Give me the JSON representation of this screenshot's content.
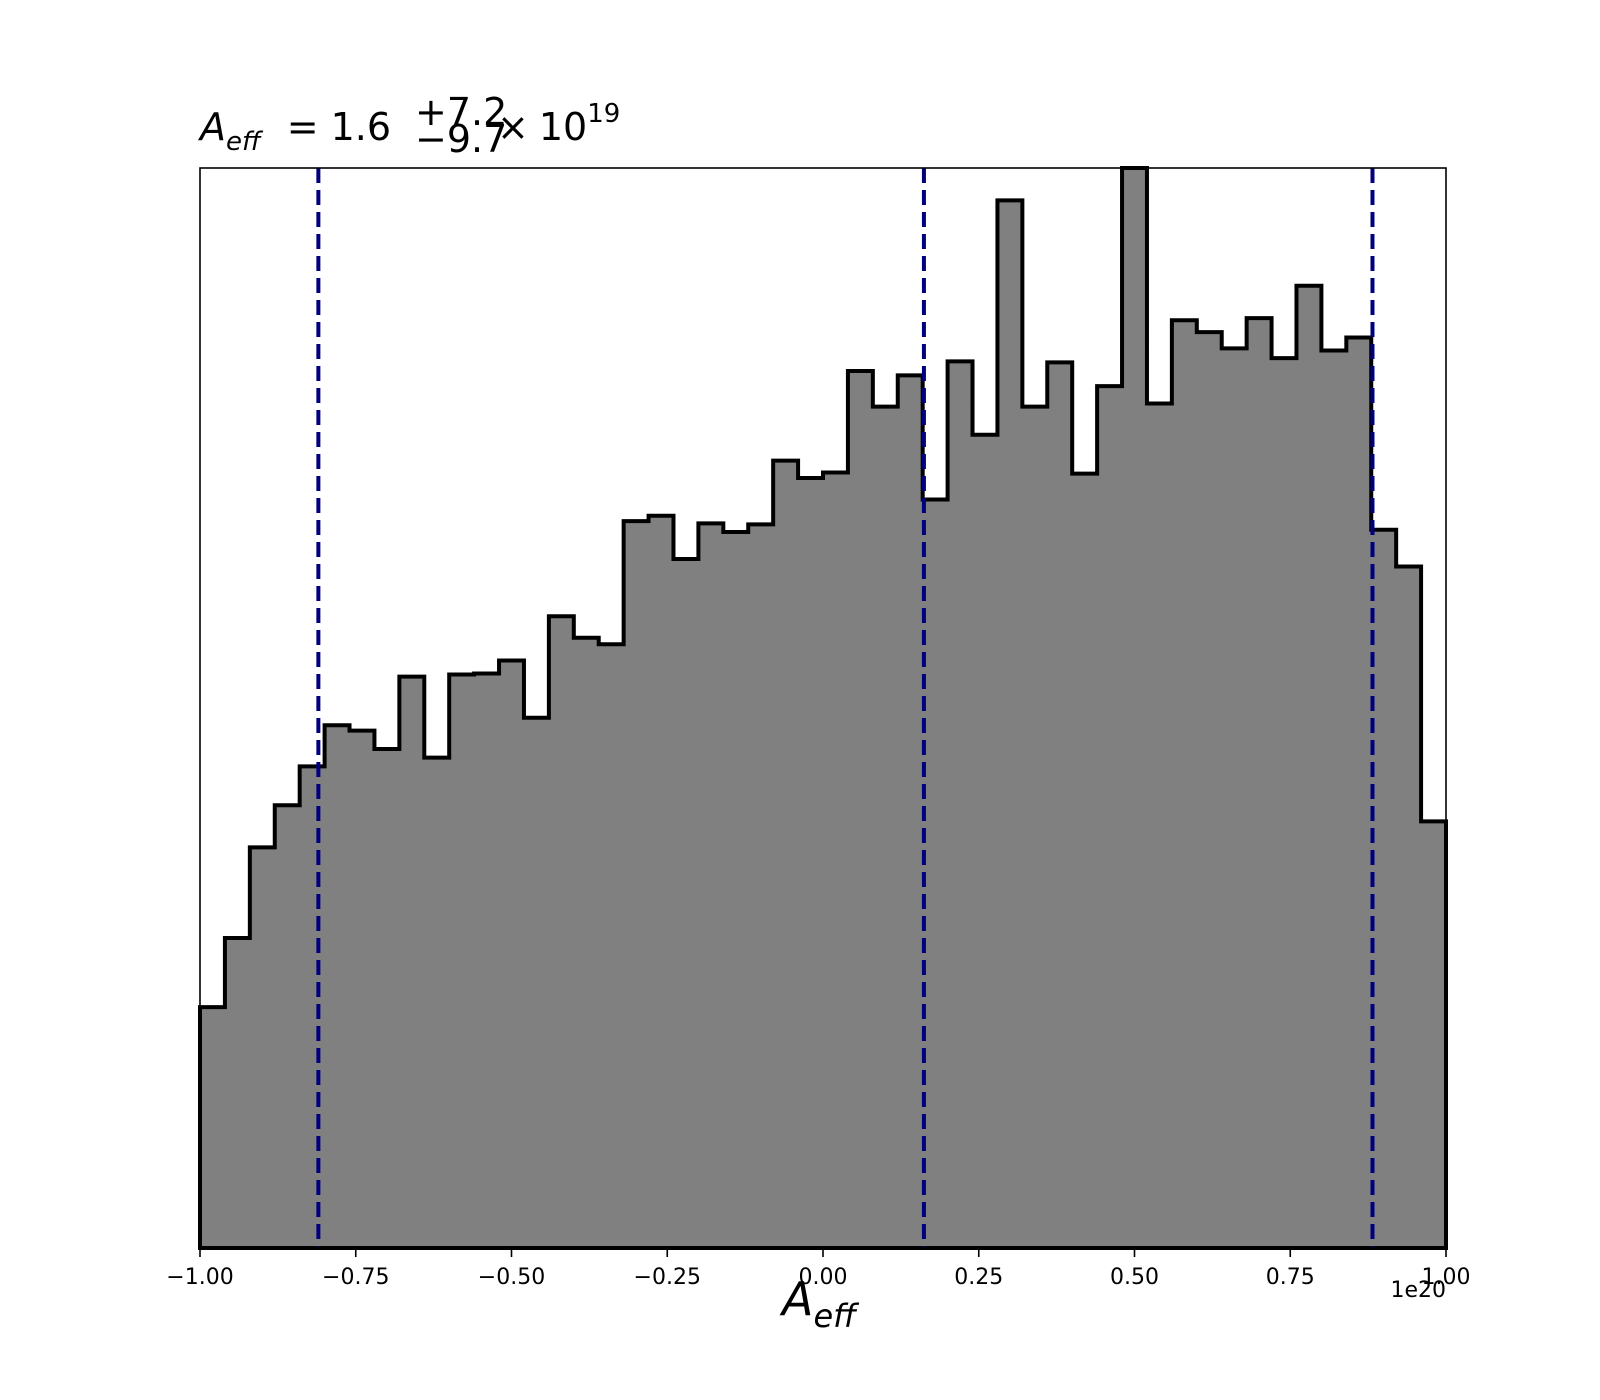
{
  "chart_data": {
    "type": "histogram",
    "title": {
      "symbol": "A",
      "symbol_subscript": "eff",
      "equals": "=",
      "value": "1.6",
      "upper_err": "+7.2",
      "lower_err": "−9.7",
      "times": "×",
      "base": "10",
      "exponent": "19"
    },
    "xlabel": {
      "symbol": "A",
      "subscript": "eff"
    },
    "ylabel": "",
    "x_offset_label": "1e20",
    "xlim": [
      -1.0,
      1.0
    ],
    "ylim": [
      0,
      100
    ],
    "xticks": [
      -1.0,
      -0.75,
      -0.5,
      -0.25,
      0.0,
      0.25,
      0.5,
      0.75,
      1.0
    ],
    "xtick_labels": [
      "−1.00",
      "−0.75",
      "−0.50",
      "−0.25",
      "0.00",
      "0.25",
      "0.50",
      "0.75",
      "1.00"
    ],
    "yticks_visible": false,
    "bin_edges": [
      -1.0,
      -0.96,
      -0.92,
      -0.88,
      -0.84,
      -0.8,
      -0.76,
      -0.72,
      -0.68,
      -0.64,
      -0.6,
      -0.56,
      -0.52,
      -0.48,
      -0.44,
      -0.4,
      -0.36,
      -0.32,
      -0.28,
      -0.24,
      -0.2,
      -0.16,
      -0.12,
      -0.08,
      -0.04,
      0.0,
      0.04,
      0.08,
      0.12,
      0.16,
      0.2,
      0.24,
      0.28,
      0.32,
      0.36,
      0.4,
      0.44,
      0.48,
      0.52,
      0.56,
      0.6,
      0.64,
      0.68,
      0.72,
      0.76,
      0.8,
      0.84,
      0.88,
      0.92,
      0.96,
      1.0
    ],
    "counts": [
      22.3,
      28.7,
      37.1,
      41.0,
      44.6,
      48.4,
      47.9,
      46.2,
      52.9,
      45.4,
      53.1,
      53.2,
      54.4,
      49.1,
      58.5,
      56.5,
      55.9,
      67.3,
      67.8,
      63.8,
      67.1,
      66.3,
      67.0,
      72.9,
      71.3,
      71.8,
      81.2,
      77.9,
      80.8,
      69.3,
      82.1,
      75.3,
      97.0,
      77.9,
      82.0,
      71.7,
      79.8,
      100.0,
      78.2,
      85.9,
      84.8,
      83.3,
      86.1,
      82.4,
      89.1,
      83.1,
      84.3,
      66.5,
      63.1,
      39.5
    ],
    "vlines": [
      -0.81,
      0.162,
      0.882
    ],
    "colors": {
      "fill": "#808080",
      "edge": "#000000",
      "vline": "#00007f",
      "axes": "#000000"
    },
    "grid": false,
    "legend": "none"
  }
}
